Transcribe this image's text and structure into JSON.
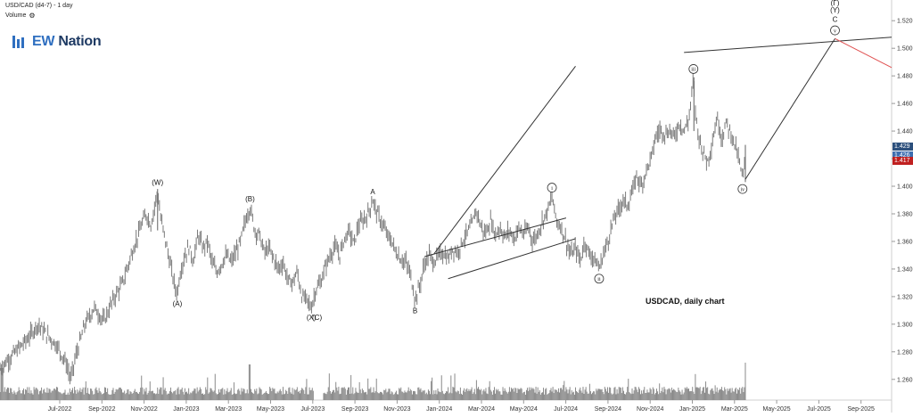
{
  "header": {
    "title": "USD/CAD (d4-7) - 1 day",
    "volume_label": "Volume",
    "volume_icon": "gear-icon"
  },
  "logo": {
    "prefix": "EW",
    "suffix": " Nation"
  },
  "chart_data": {
    "type": "bar",
    "subtype": "ohlc-price-chart-with-volume",
    "symbol": "USD/CAD",
    "interval": "1 day",
    "annotation_text": "USDCAD, daily chart",
    "ylim": [
      1.245,
      1.535
    ],
    "y_ticks": [
      "1.260",
      "1.280",
      "1.300",
      "1.320",
      "1.340",
      "1.360",
      "1.380",
      "1.400",
      "1.420",
      "1.440",
      "1.460",
      "1.480",
      "1.500",
      "1.520"
    ],
    "x_ticks": [
      "Jul-2022",
      "Sep-2022",
      "Nov-2022",
      "Jan-2023",
      "Mar-2023",
      "May-2023",
      "Jul-2023",
      "Sep-2023",
      "Nov-2023",
      "Jan-2024",
      "Mar-2024",
      "May-2024",
      "Jul-2024",
      "Sep-2024",
      "Nov-2024",
      "Jan-2025",
      "Mar-2025",
      "May-2025",
      "Jul-2025",
      "Sep-2025"
    ],
    "price_tags": [
      {
        "label": "1.429",
        "color": "#2c4f7c",
        "value": 1.429
      },
      {
        "label": "1.426",
        "color": "#3d6eb0",
        "value": 1.4225
      },
      {
        "label": "1.417",
        "color": "#c02020",
        "value": 1.4185
      }
    ],
    "price_path": [
      [
        0,
        1.268
      ],
      [
        3,
        1.29
      ],
      [
        4,
        1.3
      ],
      [
        5,
        1.292
      ],
      [
        6,
        1.285
      ],
      [
        7,
        1.272
      ],
      [
        7.5,
        1.26
      ],
      [
        8,
        1.276
      ],
      [
        9,
        1.3
      ],
      [
        10,
        1.312
      ],
      [
        11,
        1.302
      ],
      [
        12,
        1.318
      ],
      [
        13,
        1.33
      ],
      [
        14,
        1.352
      ],
      [
        15,
        1.372
      ],
      [
        15.5,
        1.38
      ],
      [
        16,
        1.372
      ],
      [
        16.7,
        1.396
      ],
      [
        17,
        1.378
      ],
      [
        17.5,
        1.362
      ],
      [
        18,
        1.345
      ],
      [
        18.5,
        1.328
      ],
      [
        18.8,
        1.322
      ],
      [
        19,
        1.334
      ],
      [
        19.5,
        1.348
      ],
      [
        20,
        1.356
      ],
      [
        20.5,
        1.346
      ],
      [
        21,
        1.365
      ],
      [
        21.5,
        1.355
      ],
      [
        22,
        1.36
      ],
      [
        22.5,
        1.344
      ],
      [
        23,
        1.338
      ],
      [
        23.5,
        1.344
      ],
      [
        24,
        1.35
      ],
      [
        24.5,
        1.345
      ],
      [
        25,
        1.352
      ],
      [
        25.5,
        1.36
      ],
      [
        26,
        1.375
      ],
      [
        26.5,
        1.385
      ],
      [
        27,
        1.368
      ],
      [
        27.5,
        1.365
      ],
      [
        28,
        1.352
      ],
      [
        28.5,
        1.355
      ],
      [
        29,
        1.348
      ],
      [
        29.5,
        1.34
      ],
      [
        30,
        1.345
      ],
      [
        30.5,
        1.332
      ],
      [
        31,
        1.33
      ],
      [
        31.5,
        1.338
      ],
      [
        32,
        1.32
      ],
      [
        32.5,
        1.318
      ],
      [
        33,
        1.312
      ],
      [
        33.5,
        1.326
      ],
      [
        34,
        1.33
      ],
      [
        34.5,
        1.342
      ],
      [
        35,
        1.35
      ],
      [
        35.5,
        1.356
      ],
      [
        36,
        1.35
      ],
      [
        36.5,
        1.362
      ],
      [
        37,
        1.368
      ],
      [
        37.5,
        1.358
      ],
      [
        38,
        1.372
      ],
      [
        38.5,
        1.375
      ],
      [
        39,
        1.38
      ],
      [
        39.5,
        1.39
      ],
      [
        40,
        1.38
      ],
      [
        40.5,
        1.373
      ],
      [
        41,
        1.365
      ],
      [
        41.5,
        1.36
      ],
      [
        42,
        1.352
      ],
      [
        42.5,
        1.347
      ],
      [
        43,
        1.345
      ],
      [
        43.5,
        1.336
      ],
      [
        44,
        1.318
      ],
      [
        44.5,
        1.328
      ],
      [
        45,
        1.344
      ],
      [
        45.5,
        1.35
      ],
      [
        46,
        1.345
      ],
      [
        46.5,
        1.35
      ],
      [
        47,
        1.352
      ],
      [
        47.5,
        1.347
      ],
      [
        48,
        1.355
      ],
      [
        48.5,
        1.352
      ],
      [
        49,
        1.36
      ],
      [
        49.5,
        1.366
      ],
      [
        50,
        1.372
      ],
      [
        50.5,
        1.383
      ],
      [
        51,
        1.37
      ],
      [
        51.5,
        1.366
      ],
      [
        52,
        1.375
      ],
      [
        52.5,
        1.365
      ],
      [
        53,
        1.37
      ],
      [
        53.5,
        1.363
      ],
      [
        54,
        1.368
      ],
      [
        54.5,
        1.362
      ],
      [
        55,
        1.37
      ],
      [
        55.5,
        1.365
      ],
      [
        56,
        1.37
      ],
      [
        56.5,
        1.36
      ],
      [
        57,
        1.366
      ],
      [
        57.5,
        1.375
      ],
      [
        58,
        1.382
      ],
      [
        58.5,
        1.392
      ],
      [
        59,
        1.375
      ],
      [
        59.5,
        1.37
      ],
      [
        60,
        1.36
      ],
      [
        60.5,
        1.35
      ],
      [
        61,
        1.355
      ],
      [
        61.5,
        1.346
      ],
      [
        62,
        1.36
      ],
      [
        62.5,
        1.35
      ],
      [
        63,
        1.348
      ],
      [
        63.5,
        1.34
      ],
      [
        64,
        1.352
      ],
      [
        64.5,
        1.362
      ],
      [
        65,
        1.375
      ],
      [
        65.5,
        1.382
      ],
      [
        66,
        1.39
      ],
      [
        66.5,
        1.386
      ],
      [
        67,
        1.395
      ],
      [
        67.5,
        1.408
      ],
      [
        68,
        1.4
      ],
      [
        68.5,
        1.412
      ],
      [
        69,
        1.42
      ],
      [
        69.5,
        1.436
      ],
      [
        70,
        1.441
      ],
      [
        70.5,
        1.438
      ],
      [
        71,
        1.44
      ],
      [
        71.5,
        1.436
      ],
      [
        72,
        1.446
      ],
      [
        72.5,
        1.44
      ],
      [
        73,
        1.448
      ],
      [
        73.5,
        1.478
      ],
      [
        73.7,
        1.455
      ],
      [
        74,
        1.438
      ],
      [
        74.5,
        1.425
      ],
      [
        75,
        1.418
      ],
      [
        75.5,
        1.432
      ],
      [
        76,
        1.45
      ],
      [
        76.5,
        1.435
      ],
      [
        77,
        1.446
      ],
      [
        77.5,
        1.438
      ],
      [
        78,
        1.428
      ],
      [
        78.5,
        1.413
      ],
      [
        78.7,
        1.405
      ],
      [
        79,
        1.418
      ]
    ],
    "wave_labels": [
      {
        "text": "(W)",
        "x": 16.7,
        "y": 1.403
      },
      {
        "text": "(A)",
        "x": 18.8,
        "y": 1.315
      },
      {
        "text": "(B)",
        "x": 26.5,
        "y": 1.391
      },
      {
        "text": "(X)",
        "x": 33.0,
        "y": 1.305
      },
      {
        "text": "(C)",
        "x": 33.6,
        "y": 1.305
      },
      {
        "text": "A",
        "x": 39.5,
        "y": 1.396
      },
      {
        "text": "B",
        "x": 44.0,
        "y": 1.31
      },
      {
        "text": "i",
        "x": 58.5,
        "y": 1.399,
        "circled": true
      },
      {
        "text": "ii",
        "x": 63.5,
        "y": 1.333,
        "circled": true
      },
      {
        "text": "iii",
        "x": 73.5,
        "y": 1.485,
        "circled": true
      },
      {
        "text": "iv",
        "x": 78.7,
        "y": 1.398,
        "circled": true
      },
      {
        "text": "v",
        "x": 88.5,
        "y": 1.513,
        "circled": true
      },
      {
        "text": "C",
        "x": 88.5,
        "y": 1.521
      },
      {
        "text": "(Y)",
        "x": 88.5,
        "y": 1.528
      },
      {
        "text": "(Γ)",
        "x": 88.5,
        "y": 1.533
      }
    ],
    "trend_lines": [
      {
        "from": [
          45.0,
          1.349
        ],
        "to": [
          60.0,
          1.377
        ],
        "color": "#333333"
      },
      {
        "from": [
          46.0,
          1.351
        ],
        "to": [
          61.0,
          1.487
        ],
        "color": "#333333",
        "note": "upper channel"
      },
      {
        "from": [
          47.5,
          1.333
        ],
        "to": [
          61.0,
          1.362
        ],
        "color": "#333333",
        "note": "lower channel"
      },
      {
        "from": [
          72.5,
          1.497
        ],
        "to": [
          94.5,
          1.508
        ],
        "color": "#333333"
      },
      {
        "from": [
          88.5,
          1.507
        ],
        "to": [
          94.5,
          1.486
        ],
        "color": "#e05050"
      },
      {
        "from": [
          79.0,
          1.405
        ],
        "to": [
          88.5,
          1.507
        ],
        "color": "#333333"
      }
    ],
    "volume_max": 1.0,
    "x_range": [
      0,
      94.5
    ],
    "grid": false,
    "legend": "none"
  }
}
